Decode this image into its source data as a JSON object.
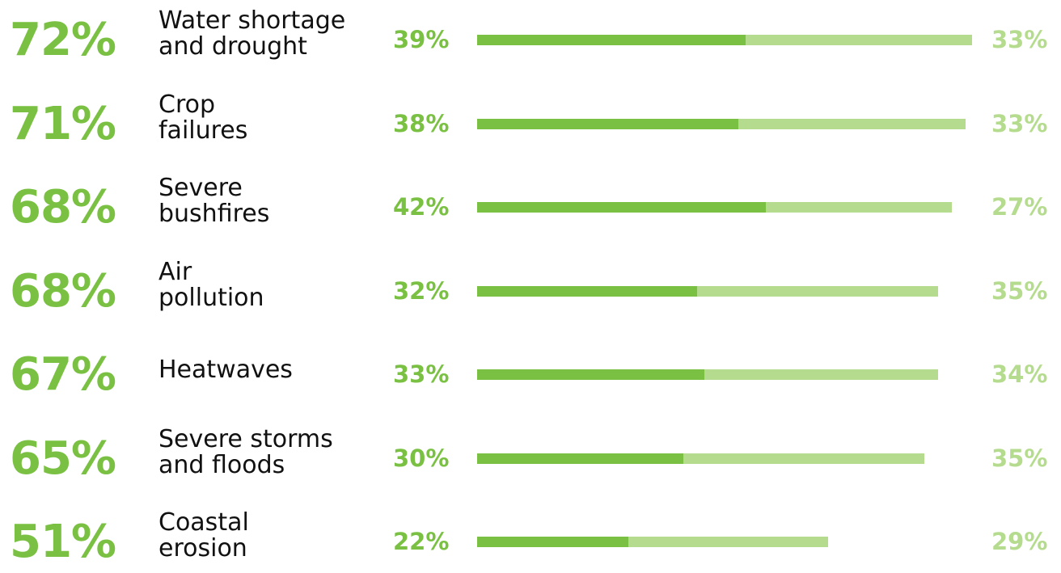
{
  "colors": {
    "total": "#7ac143",
    "strong": "#7ac143",
    "moderate": "#b5dc8e",
    "label": "#111111"
  },
  "chart_data": {
    "type": "bar",
    "orientation": "horizontal",
    "stacked": true,
    "categories": [
      "Water shortage\nand drought",
      "Crop\nfailures",
      "Severe\nbushfires",
      "Air\npollution",
      "Heatwaves",
      "Severe storms\nand floods",
      "Coastal\nerosion"
    ],
    "totals": [
      "72%",
      "71%",
      "68%",
      "68%",
      "67%",
      "65%",
      "51%"
    ],
    "total_values": [
      72,
      71,
      68,
      68,
      67,
      65,
      51
    ],
    "series": [
      {
        "values": [
          39,
          38,
          42,
          32,
          33,
          30,
          22
        ],
        "labels": [
          "39%",
          "38%",
          "42%",
          "32%",
          "33%",
          "30%",
          "22%"
        ]
      },
      {
        "values": [
          33,
          33,
          27,
          35,
          34,
          35,
          29
        ],
        "labels": [
          "33%",
          "33%",
          "27%",
          "35%",
          "34%",
          "35%",
          "29%"
        ]
      }
    ],
    "xlim": [
      0,
      72
    ]
  }
}
